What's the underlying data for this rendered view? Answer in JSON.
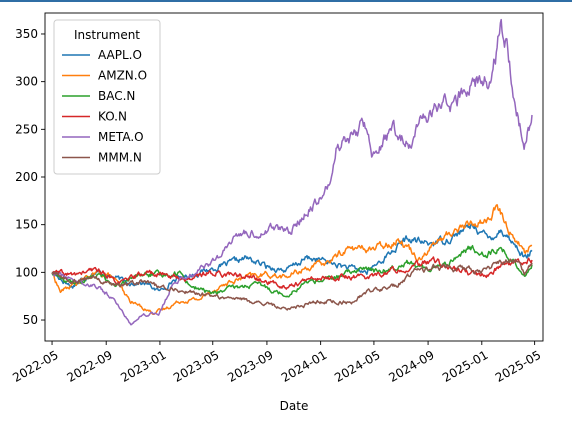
{
  "chart_data": {
    "type": "line",
    "xlabel": "Date",
    "ylabel": "",
    "xlim": [
      "2022-04-15",
      "2025-05-20"
    ],
    "ylim": [
      28,
      372
    ],
    "grid": false,
    "legend": {
      "title": "Instrument",
      "placement": "top-left"
    },
    "x_ticks": [
      "2022-05",
      "2022-09",
      "2023-01",
      "2023-05",
      "2023-09",
      "2024-01",
      "2024-05",
      "2024-09",
      "2025-01",
      "2025-05"
    ],
    "y_ticks": [
      50,
      100,
      150,
      200,
      250,
      300,
      350
    ],
    "series": [
      {
        "name": "AAPL.O",
        "color": "#1f77b4",
        "points": [
          [
            "2022-05-01",
            100
          ],
          [
            "2022-06-15",
            85
          ],
          [
            "2022-08-01",
            100
          ],
          [
            "2022-09-01",
            98
          ],
          [
            "2022-10-15",
            90
          ],
          [
            "2022-12-01",
            88
          ],
          [
            "2023-01-01",
            80
          ],
          [
            "2023-02-01",
            92
          ],
          [
            "2023-04-01",
            100
          ],
          [
            "2023-06-01",
            108
          ],
          [
            "2023-07-15",
            115
          ],
          [
            "2023-09-01",
            106
          ],
          [
            "2023-10-15",
            102
          ],
          [
            "2023-12-01",
            115
          ],
          [
            "2024-01-01",
            113
          ],
          [
            "2024-02-15",
            107
          ],
          [
            "2024-04-15",
            100
          ],
          [
            "2024-06-01",
            118
          ],
          [
            "2024-07-15",
            135
          ],
          [
            "2024-09-01",
            130
          ],
          [
            "2024-10-15",
            135
          ],
          [
            "2024-12-15",
            150
          ],
          [
            "2025-01-15",
            135
          ],
          [
            "2025-02-15",
            145
          ],
          [
            "2025-03-15",
            130
          ],
          [
            "2025-04-10",
            115
          ],
          [
            "2025-04-25",
            122
          ]
        ]
      },
      {
        "name": "AMZN.O",
        "color": "#ff7f0e",
        "points": [
          [
            "2022-05-01",
            100
          ],
          [
            "2022-05-20",
            80
          ],
          [
            "2022-07-01",
            90
          ],
          [
            "2022-08-15",
            100
          ],
          [
            "2022-09-15",
            95
          ],
          [
            "2022-10-25",
            70
          ],
          [
            "2022-12-15",
            58
          ],
          [
            "2023-01-05",
            60
          ],
          [
            "2023-02-15",
            70
          ],
          [
            "2023-04-01",
            72
          ],
          [
            "2023-05-15",
            85
          ],
          [
            "2023-07-15",
            95
          ],
          [
            "2023-09-01",
            98
          ],
          [
            "2023-10-15",
            95
          ],
          [
            "2023-12-01",
            105
          ],
          [
            "2024-01-15",
            110
          ],
          [
            "2024-03-01",
            125
          ],
          [
            "2024-05-01",
            125
          ],
          [
            "2024-07-01",
            135
          ],
          [
            "2024-08-10",
            115
          ],
          [
            "2024-09-15",
            130
          ],
          [
            "2024-11-15",
            148
          ],
          [
            "2025-01-15",
            155
          ],
          [
            "2025-02-05",
            168
          ],
          [
            "2025-03-10",
            140
          ],
          [
            "2025-04-08",
            122
          ],
          [
            "2025-04-25",
            128
          ]
        ]
      },
      {
        "name": "BAC.N",
        "color": "#2ca02c",
        "points": [
          [
            "2022-05-01",
            100
          ],
          [
            "2022-06-15",
            88
          ],
          [
            "2022-08-15",
            97
          ],
          [
            "2022-10-01",
            85
          ],
          [
            "2022-11-15",
            98
          ],
          [
            "2023-01-01",
            97
          ],
          [
            "2023-02-15",
            100
          ],
          [
            "2023-03-15",
            85
          ],
          [
            "2023-05-01",
            78
          ],
          [
            "2023-07-01",
            85
          ],
          [
            "2023-08-15",
            87
          ],
          [
            "2023-10-15",
            76
          ],
          [
            "2023-12-01",
            90
          ],
          [
            "2024-02-15",
            95
          ],
          [
            "2024-04-01",
            105
          ],
          [
            "2024-05-15",
            100
          ],
          [
            "2024-07-15",
            112
          ],
          [
            "2024-08-15",
            103
          ],
          [
            "2024-10-15",
            110
          ],
          [
            "2024-12-01",
            125
          ],
          [
            "2025-01-15",
            120
          ],
          [
            "2025-02-15",
            125
          ],
          [
            "2025-03-15",
            110
          ],
          [
            "2025-04-08",
            98
          ],
          [
            "2025-04-25",
            108
          ]
        ]
      },
      {
        "name": "KO.N",
        "color": "#d62728",
        "points": [
          [
            "2022-05-01",
            100
          ],
          [
            "2022-06-15",
            97
          ],
          [
            "2022-08-15",
            103
          ],
          [
            "2022-10-01",
            88
          ],
          [
            "2022-12-01",
            100
          ],
          [
            "2023-01-15",
            97
          ],
          [
            "2023-03-01",
            93
          ],
          [
            "2023-05-01",
            100
          ],
          [
            "2023-07-15",
            96
          ],
          [
            "2023-09-01",
            90
          ],
          [
            "2023-10-15",
            85
          ],
          [
            "2023-12-15",
            93
          ],
          [
            "2024-02-15",
            95
          ],
          [
            "2024-04-15",
            95
          ],
          [
            "2024-06-15",
            102
          ],
          [
            "2024-09-15",
            112
          ],
          [
            "2024-11-01",
            103
          ],
          [
            "2024-12-15",
            98
          ],
          [
            "2025-01-15",
            97
          ],
          [
            "2025-02-15",
            108
          ],
          [
            "2025-03-15",
            110
          ],
          [
            "2025-04-25",
            113
          ]
        ]
      },
      {
        "name": "META.O",
        "color": "#9467bd",
        "points": [
          [
            "2022-05-01",
            100
          ],
          [
            "2022-06-01",
            95
          ],
          [
            "2022-08-15",
            85
          ],
          [
            "2022-09-25",
            68
          ],
          [
            "2022-10-27",
            45
          ],
          [
            "2022-11-15",
            55
          ],
          [
            "2022-12-31",
            58
          ],
          [
            "2023-02-02",
            90
          ],
          [
            "2023-04-01",
            103
          ],
          [
            "2023-05-15",
            115
          ],
          [
            "2023-07-01",
            142
          ],
          [
            "2023-08-15",
            140
          ],
          [
            "2023-09-15",
            148
          ],
          [
            "2023-10-25",
            142
          ],
          [
            "2023-12-01",
            165
          ],
          [
            "2024-01-20",
            190
          ],
          [
            "2024-02-05",
            233
          ],
          [
            "2024-03-15",
            245
          ],
          [
            "2024-04-15",
            256
          ],
          [
            "2024-04-26",
            225
          ],
          [
            "2024-06-15",
            250
          ],
          [
            "2024-07-25",
            230
          ],
          [
            "2024-08-15",
            258
          ],
          [
            "2024-10-01",
            280
          ],
          [
            "2024-10-31",
            275
          ],
          [
            "2024-12-15",
            300
          ],
          [
            "2025-01-15",
            300
          ],
          [
            "2025-02-01",
            325
          ],
          [
            "2025-02-14",
            358
          ],
          [
            "2025-03-01",
            330
          ],
          [
            "2025-03-15",
            285
          ],
          [
            "2025-04-07",
            235
          ],
          [
            "2025-04-20",
            255
          ],
          [
            "2025-04-25",
            265
          ]
        ]
      },
      {
        "name": "MMM.N",
        "color": "#8c564b",
        "points": [
          [
            "2022-05-01",
            100
          ],
          [
            "2022-06-15",
            90
          ],
          [
            "2022-08-01",
            95
          ],
          [
            "2022-09-15",
            85
          ],
          [
            "2022-11-15",
            90
          ],
          [
            "2023-01-01",
            85
          ],
          [
            "2023-03-01",
            80
          ],
          [
            "2023-05-01",
            75
          ],
          [
            "2023-07-01",
            72
          ],
          [
            "2023-08-15",
            68
          ],
          [
            "2023-10-15",
            62
          ],
          [
            "2023-12-15",
            68
          ],
          [
            "2024-01-15",
            70
          ],
          [
            "2024-03-15",
            68
          ],
          [
            "2024-04-15",
            80
          ],
          [
            "2024-06-15",
            85
          ],
          [
            "2024-08-01",
            100
          ],
          [
            "2024-09-15",
            105
          ],
          [
            "2024-11-15",
            103
          ],
          [
            "2025-01-15",
            102
          ],
          [
            "2025-02-15",
            112
          ],
          [
            "2025-03-20",
            115
          ],
          [
            "2025-04-08",
            100
          ],
          [
            "2025-04-25",
            110
          ]
        ]
      }
    ]
  }
}
